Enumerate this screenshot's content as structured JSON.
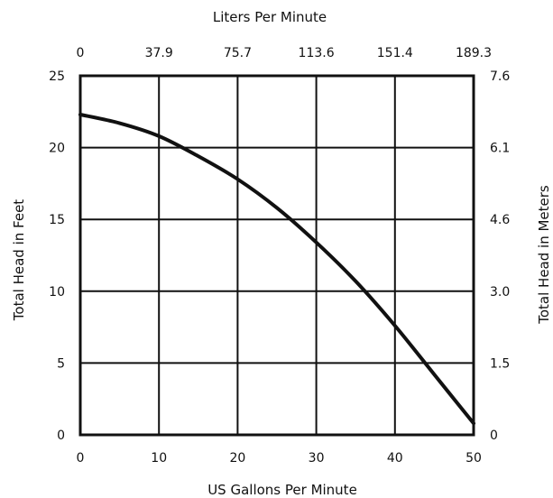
{
  "chart_data": {
    "type": "line",
    "title": "",
    "grid": true,
    "legend": "none",
    "line_color": "#111111",
    "grid_color": "#111111",
    "x_axis": {
      "label": "US Gallons Per Minute",
      "range": [
        0,
        50
      ],
      "ticks": [
        "0",
        "10",
        "20",
        "30",
        "40",
        "50"
      ],
      "tick_values": [
        0,
        10,
        20,
        30,
        40,
        50
      ]
    },
    "x2_axis": {
      "label": "Liters Per Minute",
      "range": [
        0,
        189.3
      ],
      "ticks": [
        "0",
        "37.9",
        "75.7",
        "113.6",
        "151.4",
        "189.3"
      ]
    },
    "y_axis": {
      "label": "Total Head in Feet",
      "range": [
        0,
        25
      ],
      "ticks": [
        "0",
        "5",
        "10",
        "15",
        "20",
        "25"
      ],
      "tick_values": [
        0,
        5,
        10,
        15,
        20,
        25
      ]
    },
    "y2_axis": {
      "label": "Total Head in Meters",
      "range": [
        0,
        7.6
      ],
      "ticks": [
        "0",
        "1.5",
        "3.0",
        "4.6",
        "6.1",
        "7.6"
      ]
    },
    "series": [
      {
        "name": "",
        "x": [
          0,
          5,
          10,
          15,
          20,
          25,
          30,
          35,
          40,
          45,
          50
        ],
        "y": [
          22.3,
          21.7,
          20.8,
          19.4,
          17.8,
          15.8,
          13.4,
          10.7,
          7.6,
          4.2,
          0.8
        ]
      }
    ]
  }
}
